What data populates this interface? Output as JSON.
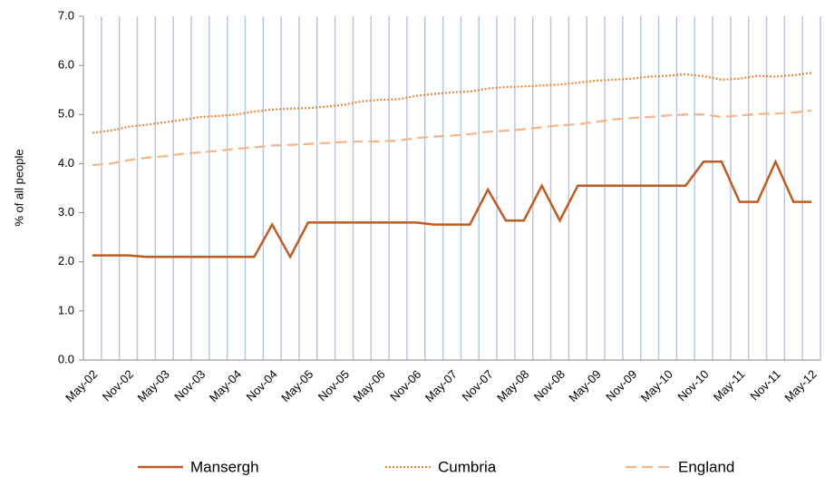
{
  "chart_data": {
    "type": "line",
    "y_label": "% of all people",
    "categories": [
      "May-02",
      null,
      "Nov-02",
      null,
      "May-03",
      null,
      "Nov-03",
      null,
      "May-04",
      null,
      "Nov-04",
      null,
      "May-05",
      null,
      "Nov-05",
      null,
      "May-06",
      null,
      "Nov-06",
      null,
      "May-07",
      null,
      "Nov-07",
      null,
      "May-08",
      null,
      "Nov-08",
      null,
      "May-09",
      null,
      "Nov-09",
      null,
      "May-10",
      null,
      "Nov-10",
      null,
      "May-11",
      null,
      "Nov-11",
      null,
      "May-12"
    ],
    "series": [
      {
        "name": "Mansergh",
        "color": "#bf5b22",
        "dash": "solid",
        "values": [
          2.13,
          2.13,
          2.13,
          2.1,
          2.1,
          2.1,
          2.1,
          2.1,
          2.1,
          2.1,
          2.76,
          2.1,
          2.8,
          2.8,
          2.8,
          2.8,
          2.8,
          2.8,
          2.8,
          2.76,
          2.76,
          2.76,
          3.47,
          2.84,
          2.84,
          3.55,
          2.84,
          3.55,
          3.55,
          3.55,
          3.55,
          3.55,
          3.55,
          3.55,
          4.04,
          4.04,
          3.22,
          3.22,
          4.04,
          3.22,
          3.22
        ]
      },
      {
        "name": "Cumbria",
        "color": "#e8863a",
        "dash": "dotted",
        "values": [
          4.63,
          4.67,
          4.75,
          4.79,
          4.84,
          4.89,
          4.95,
          4.97,
          5.0,
          5.06,
          5.1,
          5.12,
          5.13,
          5.16,
          5.2,
          5.27,
          5.3,
          5.31,
          5.38,
          5.42,
          5.45,
          5.47,
          5.53,
          5.56,
          5.57,
          5.59,
          5.61,
          5.65,
          5.69,
          5.71,
          5.73,
          5.77,
          5.79,
          5.82,
          5.78,
          5.71,
          5.73,
          5.79,
          5.77,
          5.8,
          5.85
        ]
      },
      {
        "name": "England",
        "color": "#f5b48a",
        "dash": "dashed",
        "values": [
          3.97,
          4.0,
          4.07,
          4.12,
          4.15,
          4.2,
          4.23,
          4.26,
          4.3,
          4.33,
          4.37,
          4.38,
          4.4,
          4.42,
          4.44,
          4.45,
          4.45,
          4.47,
          4.52,
          4.55,
          4.57,
          4.6,
          4.65,
          4.67,
          4.7,
          4.74,
          4.78,
          4.8,
          4.85,
          4.9,
          4.93,
          4.95,
          4.98,
          5.0,
          5.0,
          4.95,
          4.98,
          5.01,
          5.02,
          5.04,
          5.08
        ]
      }
    ],
    "ylim": [
      0,
      7
    ],
    "yticks": [
      {
        "value": 0,
        "label": "0.0"
      },
      {
        "value": 1,
        "label": "1.0"
      },
      {
        "value": 2,
        "label": "2.0"
      },
      {
        "value": 3,
        "label": "3.0"
      },
      {
        "value": 4,
        "label": "4.0"
      },
      {
        "value": 5,
        "label": "5.0"
      },
      {
        "value": 6,
        "label": "6.0"
      },
      {
        "value": 7,
        "label": "7.0"
      }
    ],
    "grid": true,
    "legend": "bottom"
  }
}
